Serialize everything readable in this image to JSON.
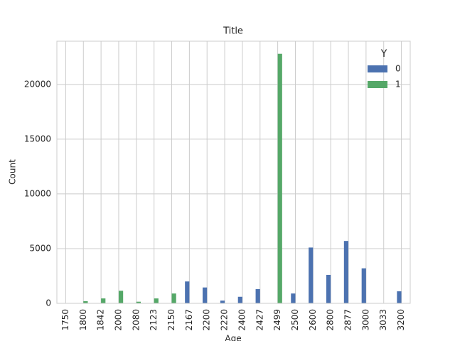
{
  "chart_data": {
    "type": "bar",
    "title": "Title",
    "x_label": "Age",
    "y_label": "Count",
    "categories": [
      "1750",
      "1800",
      "1842",
      "2000",
      "2080",
      "2123",
      "2150",
      "2167",
      "2200",
      "2220",
      "2400",
      "2427",
      "2499",
      "2500",
      "2600",
      "2800",
      "2877",
      "3000",
      "3033",
      "3200"
    ],
    "series": [
      {
        "name": "0",
        "color": "#4c72b0",
        "values": [
          null,
          null,
          null,
          null,
          null,
          null,
          null,
          2000,
          1450,
          250,
          600,
          1300,
          null,
          900,
          5100,
          2600,
          5700,
          3200,
          null,
          1100
        ]
      },
      {
        "name": "1",
        "color": "#55a868",
        "values": [
          null,
          200,
          450,
          1150,
          150,
          450,
          900,
          null,
          null,
          null,
          null,
          null,
          22800,
          null,
          null,
          null,
          null,
          null,
          null,
          null
        ]
      }
    ],
    "legend_title": "Y",
    "legend_position": "upper right",
    "ylim": [
      0,
      23950
    ],
    "yticks": [
      0,
      5000,
      10000,
      15000,
      20000
    ],
    "grid": true
  }
}
